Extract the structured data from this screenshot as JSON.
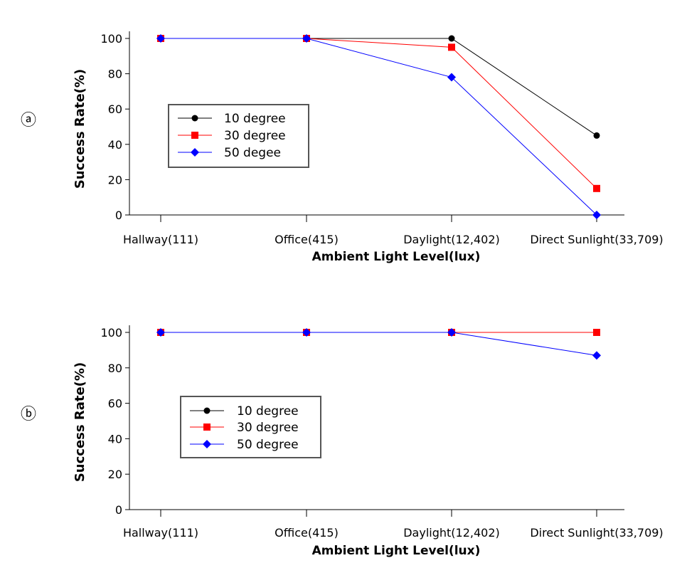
{
  "chart_data": [
    {
      "panel_label": "ⓐ",
      "type": "line",
      "categories": [
        "Hallway(111)",
        "Office(415)",
        "Daylight(12,402)",
        "Direct Sunlight(33,709)"
      ],
      "series": [
        {
          "name": "10 degree",
          "values": [
            100,
            100,
            100,
            45
          ],
          "color": "#000000",
          "marker": "circle"
        },
        {
          "name": "30 degree",
          "values": [
            100,
            100,
            95,
            15
          ],
          "color": "#ff0000",
          "marker": "square"
        },
        {
          "name": "50 degee",
          "values": [
            100,
            100,
            78,
            0
          ],
          "color": "#0000ff",
          "marker": "diamond"
        }
      ],
      "yticks": [
        "0",
        "20",
        "40",
        "60",
        "80",
        "100"
      ],
      "ylim": [
        0,
        100
      ],
      "xlabel": "Ambient Light Level(lux)",
      "ylabel": "Success Rate(%)",
      "legend_position": "left-middle"
    },
    {
      "panel_label": "ⓑ",
      "type": "line",
      "categories": [
        "Hallway(111)",
        "Office(415)",
        "Daylight(12,402)",
        "Direct Sunlight(33,709)"
      ],
      "series": [
        {
          "name": "10 degree",
          "values": [
            100,
            100,
            100,
            100
          ],
          "color": "#000000",
          "marker": "circle"
        },
        {
          "name": "30 degree",
          "values": [
            100,
            100,
            100,
            100
          ],
          "color": "#ff0000",
          "marker": "square"
        },
        {
          "name": "50 degree",
          "values": [
            100,
            100,
            100,
            87
          ],
          "color": "#0000ff",
          "marker": "diamond"
        }
      ],
      "yticks": [
        "0",
        "20",
        "40",
        "60",
        "80",
        "100"
      ],
      "ylim": [
        0,
        100
      ],
      "xlabel": "Ambient Light Level(lux)",
      "ylabel": "Success Rate(%)",
      "legend_position": "left-middle"
    }
  ]
}
